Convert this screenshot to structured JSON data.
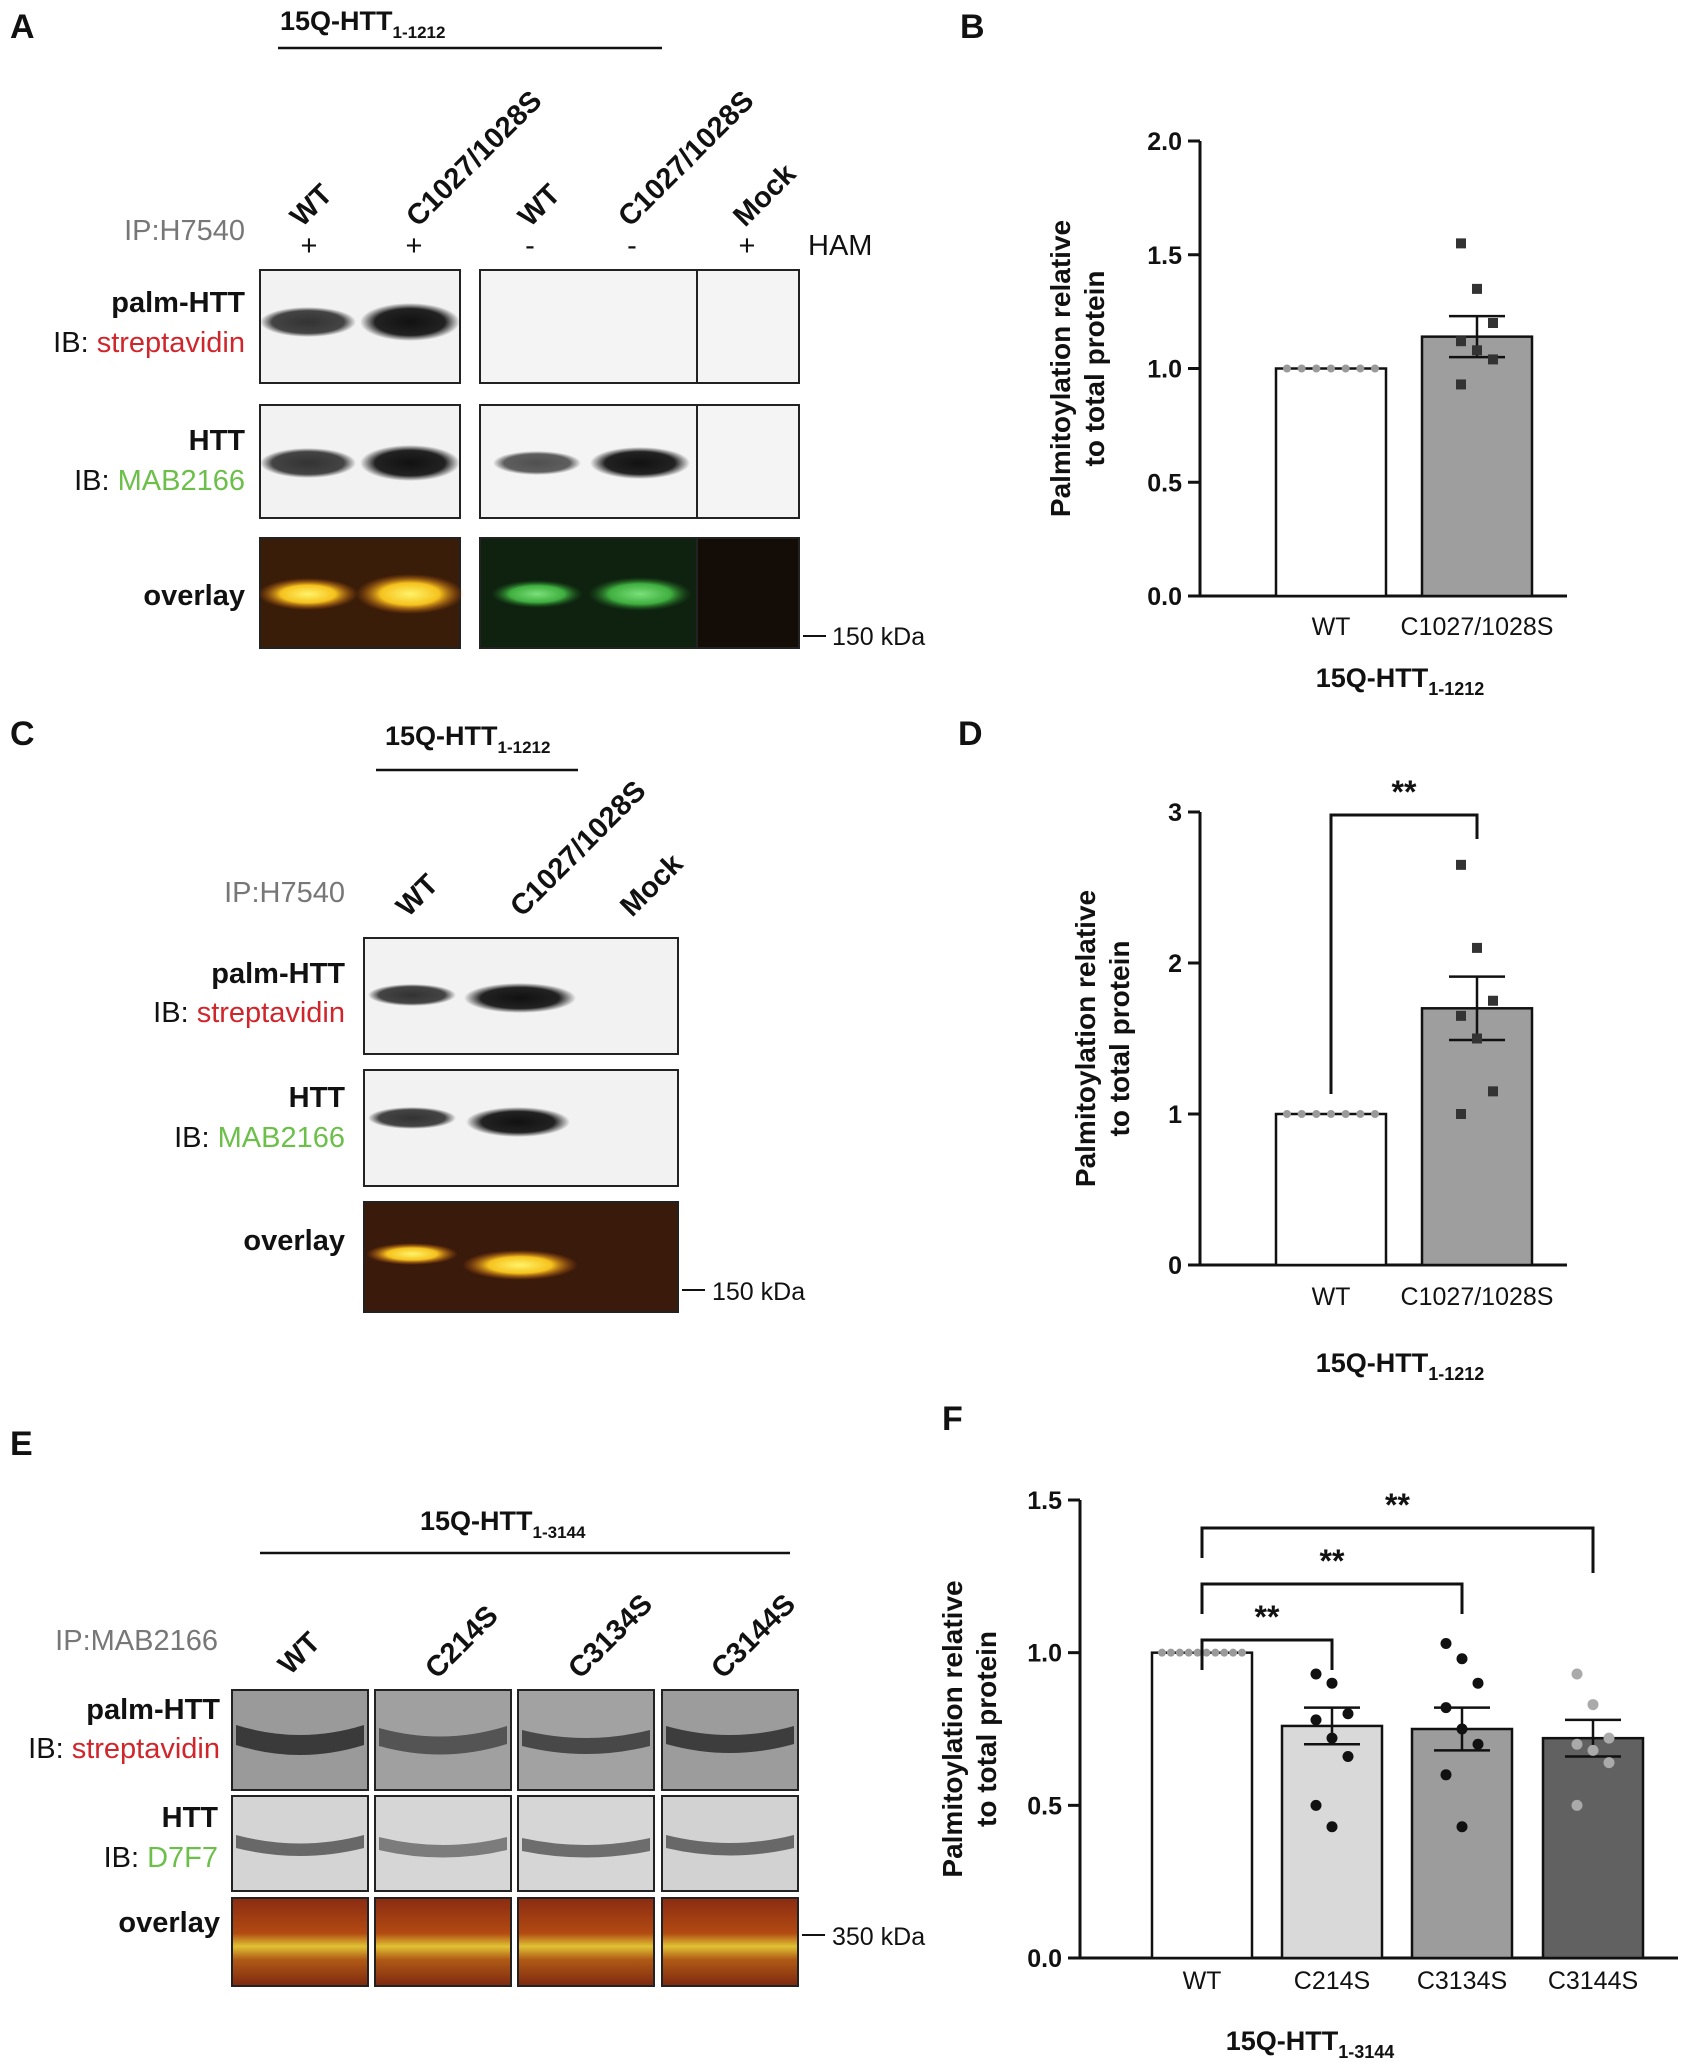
{
  "panels": {
    "A": {
      "letter": "A",
      "construct": "15Q-HTT",
      "construct_sub": "1-1212",
      "lanes": [
        "WT",
        "C1027/1028S",
        "WT",
        "C1027/1028S",
        "Mock"
      ],
      "ip_label": "IP:H7540",
      "ham_signs": [
        "+",
        "+",
        "-",
        "-",
        "+"
      ],
      "ham_label": "HAM",
      "row1_title": "palm-HTT",
      "row1_ib": "IB: ",
      "row1_antibody": "streptavidin",
      "row2_title": "HTT",
      "row2_ib": "IB: ",
      "row2_antibody": "MAB2166",
      "row3_title": "overlay",
      "marker": "150 kDa"
    },
    "C": {
      "letter": "C",
      "construct": "15Q-HTT",
      "construct_sub": "1-1212",
      "lanes": [
        "WT",
        "C1027/1028S",
        "Mock"
      ],
      "ip_label": "IP:H7540",
      "row1_title": "palm-HTT",
      "row1_ib": "IB: ",
      "row1_antibody": "streptavidin",
      "row2_title": "HTT",
      "row2_ib": "IB: ",
      "row2_antibody": "MAB2166",
      "row3_title": "overlay",
      "marker": "150 kDa"
    },
    "E": {
      "letter": "E",
      "construct": "15Q-HTT",
      "construct_sub": "1-3144",
      "lanes": [
        "WT",
        "C214S",
        "C3134S",
        "C3144S"
      ],
      "ip_label": "IP:MAB2166",
      "row1_title": "palm-HTT",
      "row1_ib": "IB: ",
      "row1_antibody": "streptavidin",
      "row2_title": "HTT",
      "row2_ib": "IB: ",
      "row2_antibody": "D7F7",
      "row3_title": "overlay",
      "marker": "350 kDa"
    }
  },
  "colors": {
    "streptavidin_label": "#d0262b",
    "antibody_green_label": "#6cc04a",
    "bar_wt": "#ffffff",
    "bar_mut_B": "#9e9e9e",
    "bar_mut_D": "#9e9e9e",
    "bar_C214S": "#d9d9d9",
    "bar_C3134S": "#9c9c9c",
    "bar_C3144S": "#616161"
  },
  "chart_data": [
    {
      "panel": "B",
      "type": "bar",
      "categories": [
        "WT",
        "C1027/1028S"
      ],
      "values": [
        1.0,
        1.14
      ],
      "sem": [
        0.0,
        0.09
      ],
      "points": [
        [
          1,
          1,
          1,
          1,
          1,
          1,
          1
        ],
        [
          1.55,
          1.35,
          1.2,
          1.12,
          1.08,
          1.04,
          0.93
        ]
      ],
      "ylabel": [
        "Palmitoylation relative",
        "to total protein"
      ],
      "xlabel": "15Q-HTT",
      "xlabel_sub": "1-1212",
      "ylim": [
        0,
        2.0
      ],
      "yticks": [
        "0.0",
        "0.5",
        "1.0",
        "1.5",
        "2.0"
      ],
      "significance": []
    },
    {
      "panel": "D",
      "type": "bar",
      "categories": [
        "WT",
        "C1027/1028S"
      ],
      "values": [
        1.0,
        1.7
      ],
      "sem": [
        0.0,
        0.21
      ],
      "points": [
        [
          1,
          1,
          1,
          1,
          1,
          1,
          1
        ],
        [
          2.65,
          2.1,
          1.75,
          1.65,
          1.5,
          1.15,
          1.0
        ]
      ],
      "ylabel": [
        "Palmitoylation relative",
        "to total protein"
      ],
      "xlabel": "15Q-HTT",
      "xlabel_sub": "1-1212",
      "ylim": [
        0,
        3
      ],
      "yticks": [
        "0",
        "1",
        "2",
        "3"
      ],
      "significance": [
        {
          "from": 0,
          "to": 1,
          "label": "**"
        }
      ]
    },
    {
      "panel": "F",
      "type": "bar",
      "categories": [
        "WT",
        "C214S",
        "C3134S",
        "C3144S"
      ],
      "values": [
        1.0,
        0.76,
        0.75,
        0.72
      ],
      "sem": [
        0.0,
        0.06,
        0.07,
        0.06
      ],
      "points": [
        [
          1,
          1,
          1,
          1,
          1,
          1,
          1,
          1,
          1,
          1
        ],
        [
          0.93,
          0.9,
          0.8,
          0.78,
          0.72,
          0.66,
          0.5,
          0.43
        ],
        [
          1.03,
          0.98,
          0.9,
          0.82,
          0.75,
          0.7,
          0.6,
          0.43
        ],
        [
          0.93,
          0.83,
          0.72,
          0.7,
          0.68,
          0.64,
          0.5
        ]
      ],
      "ylabel": [
        "Palmitoylation relative",
        "to total protein"
      ],
      "xlabel": "15Q-HTT",
      "xlabel_sub": "1-3144",
      "ylim": [
        0,
        1.5
      ],
      "yticks": [
        "0.0",
        "0.5",
        "1.0",
        "1.5"
      ],
      "significance": [
        {
          "from": 0,
          "to": 1,
          "label": "**"
        },
        {
          "from": 0,
          "to": 2,
          "label": "**"
        },
        {
          "from": 0,
          "to": 3,
          "label": "**"
        }
      ]
    }
  ]
}
